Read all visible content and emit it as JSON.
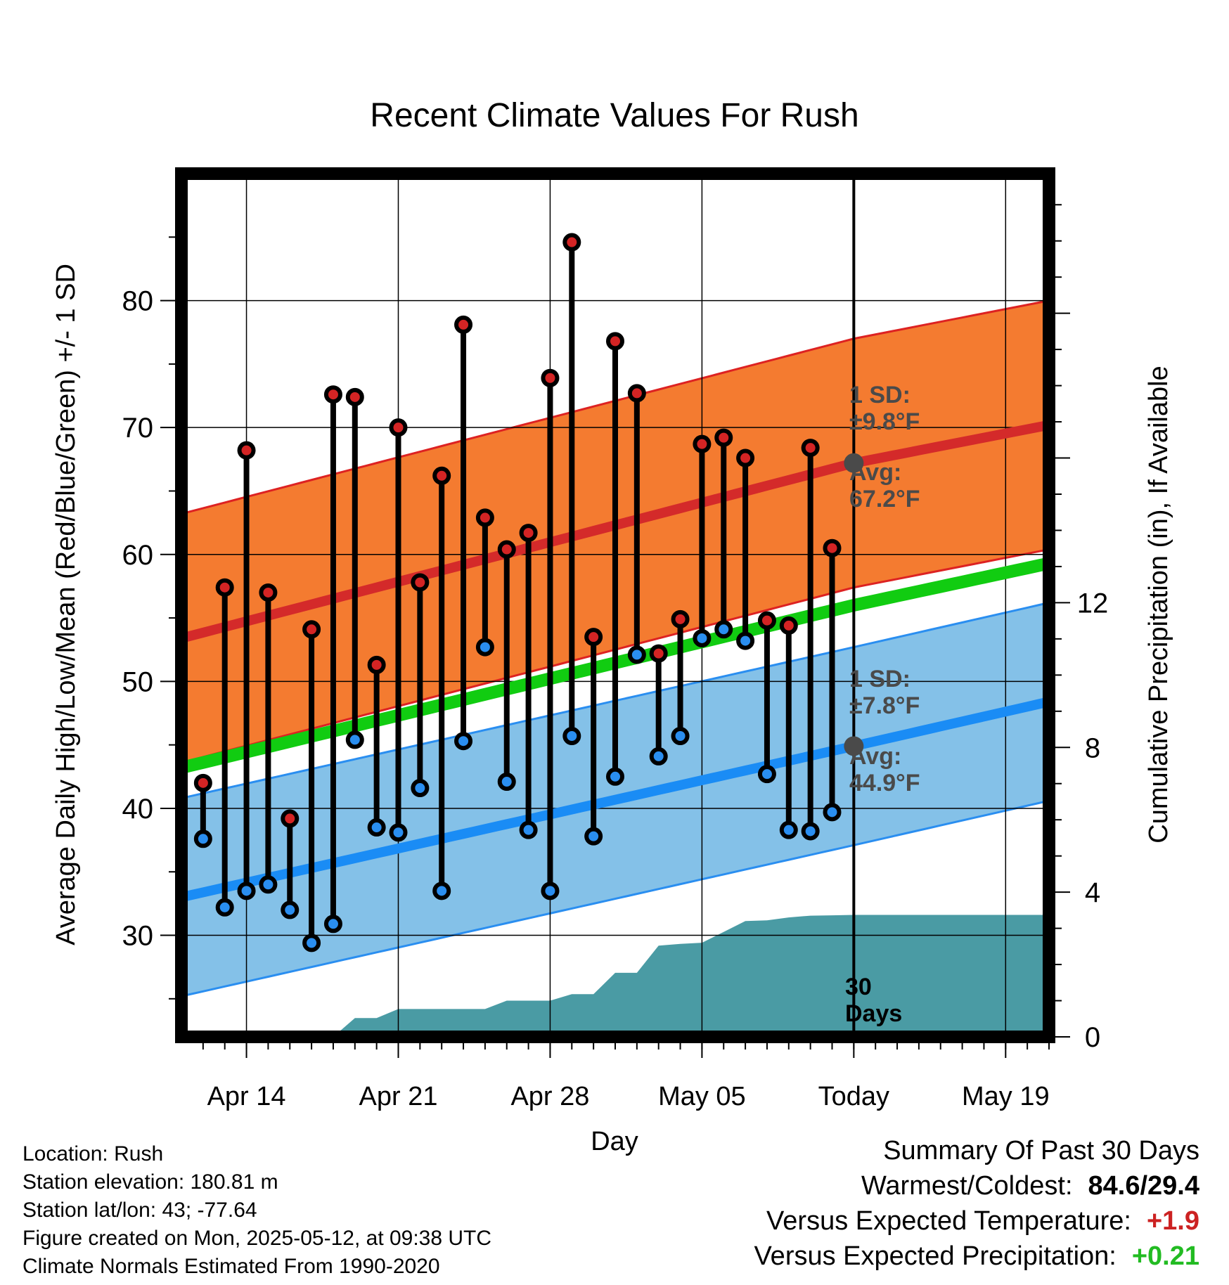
{
  "info": {
    "location": "Location: Rush",
    "elevation": "Station elevation: 180.81 m",
    "latlon": "Station lat/lon: 43; -77.64",
    "created": "Figure created on Mon, 2025-05-12, at 09:38 UTC",
    "normals": "Climate Normals Estimated From 1990-2020"
  },
  "summary": {
    "title": "Summary Of Past 30 Days",
    "warm_cold_label": "Warmest/Coldest:",
    "warm_cold_value": "84.6/29.4",
    "temp_label": "Versus Expected Temperature:",
    "temp_value": "+1.9",
    "precip_label": "Versus Expected Precipitation:",
    "precip_value": "+0.21",
    "temp_color": "#cc2222",
    "precip_color": "#22bb22"
  },
  "chart_data": {
    "type": "line",
    "title": "Recent Climate Values For Rush",
    "xlabel": "Day",
    "ylabel": "Average Daily High/Low/Mean (Red/Blue/Green) +/- 1 SD",
    "y2label": "Cumulative Precipitation (in), If Available",
    "x_range": [
      "Apr 11",
      "May 21"
    ],
    "ylim": [
      22,
      90
    ],
    "y2lim": [
      0,
      23.86
    ],
    "yticks": [
      30,
      40,
      50,
      60,
      70,
      80
    ],
    "y2ticks": [
      0,
      4,
      8,
      12
    ],
    "xticks": [
      "Apr 14",
      "Apr 21",
      "Apr 28",
      "May 05",
      "Today",
      "May 19"
    ],
    "grid": true,
    "today_line_label": [
      "30",
      "Days"
    ],
    "high_sd_label": [
      "1 SD:",
      "±9.8°F"
    ],
    "high_avg_label": [
      "Avg:",
      "67.2°F"
    ],
    "low_sd_label": [
      "1 SD:",
      "±7.8°F"
    ],
    "low_avg_label": [
      "Avg:",
      "44.9°F"
    ],
    "normals": {
      "days": [
        "Apr 11",
        "May 12",
        "May 21"
      ],
      "high_mean": [
        53.4,
        67.2,
        70.2
      ],
      "high_sd": 9.8,
      "low_mean": [
        33.0,
        44.9,
        48.4
      ],
      "low_sd": 7.8,
      "mean_mean": [
        43.2,
        56.0,
        59.3
      ]
    },
    "daily": {
      "days": [
        "Apr 12",
        "Apr 13",
        "Apr 14",
        "Apr 15",
        "Apr 16",
        "Apr 17",
        "Apr 18",
        "Apr 19",
        "Apr 20",
        "Apr 21",
        "Apr 22",
        "Apr 23",
        "Apr 24",
        "Apr 25",
        "Apr 26",
        "Apr 27",
        "Apr 28",
        "Apr 29",
        "Apr 30",
        "May 01",
        "May 02",
        "May 03",
        "May 04",
        "May 05",
        "May 06",
        "May 07",
        "May 08",
        "May 09",
        "May 10",
        "May 11"
      ],
      "high": [
        42.0,
        57.4,
        68.2,
        57.0,
        39.2,
        54.1,
        72.6,
        72.4,
        51.3,
        70.0,
        57.8,
        66.2,
        78.1,
        62.9,
        60.4,
        61.7,
        73.9,
        84.6,
        53.5,
        76.8,
        72.7,
        52.2,
        54.9,
        68.7,
        69.2,
        67.6,
        54.8,
        54.4,
        68.4,
        60.5
      ],
      "low": [
        37.6,
        32.2,
        33.5,
        34.0,
        32.0,
        29.4,
        30.9,
        45.4,
        38.5,
        38.1,
        41.6,
        33.5,
        45.3,
        52.7,
        42.1,
        38.3,
        33.5,
        45.7,
        37.8,
        42.5,
        52.1,
        44.1,
        45.7,
        53.4,
        54.1,
        53.2,
        42.7,
        38.3,
        38.2,
        39.7
      ]
    },
    "precip": {
      "days": [
        "Apr 18",
        "Apr 19",
        "Apr 20",
        "Apr 21",
        "Apr 22",
        "Apr 23",
        "Apr 24",
        "Apr 25",
        "Apr 26",
        "Apr 27",
        "Apr 28",
        "Apr 29",
        "Apr 30",
        "May 01",
        "May 02",
        "May 03",
        "May 04",
        "May 05",
        "May 06",
        "May 07",
        "May 08",
        "May 09",
        "May 10",
        "May 11",
        "May 12"
      ],
      "values": [
        0.0,
        0.52,
        0.52,
        0.77,
        0.77,
        0.77,
        0.77,
        0.77,
        1.0,
        1.0,
        1.0,
        1.18,
        1.18,
        1.77,
        1.77,
        2.52,
        2.57,
        2.6,
        2.9,
        3.2,
        3.22,
        3.3,
        3.35,
        3.36,
        3.37
      ]
    }
  }
}
